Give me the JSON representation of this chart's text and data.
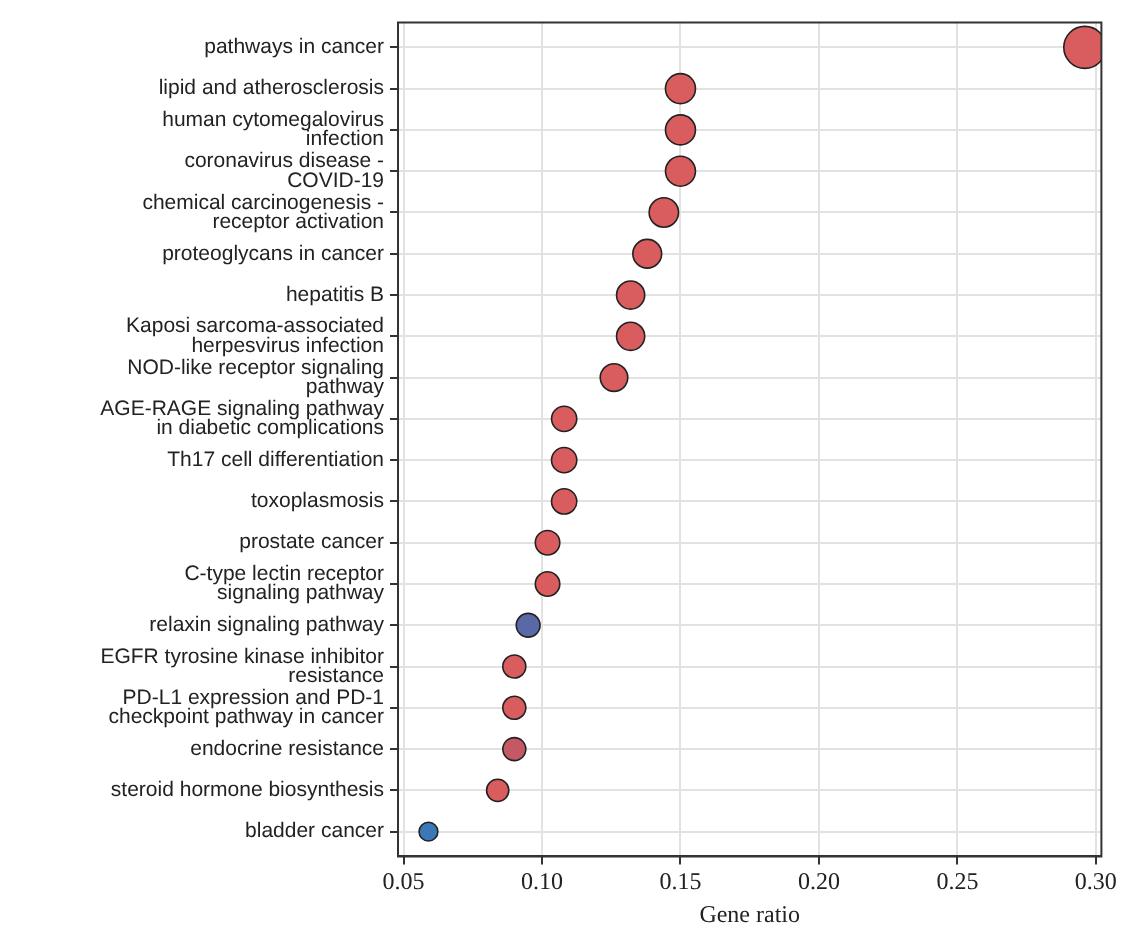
{
  "chart_data": {
    "type": "bubble",
    "orientation": "horizontal",
    "xlabel": "Gene ratio",
    "categories": [
      "pathways in cancer",
      "lipid and atherosclerosis",
      "human cytomegalovirus infection",
      "coronavirus disease - COVID-19",
      "chemical carcinogenesis - receptor activation",
      "proteoglycans in cancer",
      "hepatitis B",
      "Kaposi sarcoma-associated herpesvirus infection",
      "NOD-like receptor signaling pathway",
      "AGE-RAGE signaling pathway in diabetic complications",
      "Th17 cell differentiation",
      "toxoplasmosis",
      "prostate cancer",
      "C-type lectin receptor signaling pathway",
      "relaxin signaling pathway",
      "EGFR tyrosine kinase inhibitor resistance",
      "PD-L1 expression and PD-1 checkpoint pathway in cancer",
      "endocrine resistance",
      "steroid hormone biosynthesis",
      "bladder cancer"
    ],
    "values": [
      0.296,
      0.15,
      0.15,
      0.15,
      0.144,
      0.138,
      0.132,
      0.132,
      0.126,
      0.108,
      0.108,
      0.108,
      0.102,
      0.102,
      0.095,
      0.09,
      0.09,
      0.09,
      0.084,
      0.059
    ],
    "sizes": [
      1,
      0.51,
      0.51,
      0.51,
      0.49,
      0.47,
      0.45,
      0.45,
      0.43,
      0.36,
      0.36,
      0.36,
      0.34,
      0.34,
      0.32,
      0.3,
      0.3,
      0.3,
      0.28,
      0.2
    ],
    "colors": [
      "#d95c5f",
      "#d95c5f",
      "#d95c5f",
      "#d95c5f",
      "#d95c5f",
      "#d95c5f",
      "#d95c5f",
      "#d95c5f",
      "#d95c5f",
      "#d95c5f",
      "#d95c5f",
      "#d95c5f",
      "#d95c5f",
      "#d95c5f",
      "#5a68a8",
      "#d95c5f",
      "#d95c5f",
      "#c45864",
      "#d95c5f",
      "#3b78b8"
    ],
    "xlim": [
      0.048,
      0.302
    ],
    "xticks": [
      {
        "value": 0.05,
        "label": "0.05"
      },
      {
        "value": 0.1,
        "label": "0.10"
      },
      {
        "value": 0.15,
        "label": "0.15"
      },
      {
        "value": 0.2,
        "label": "0.20"
      },
      {
        "value": 0.25,
        "label": "0.25"
      },
      {
        "value": 0.3,
        "label": "0.30"
      }
    ],
    "grid": true
  }
}
